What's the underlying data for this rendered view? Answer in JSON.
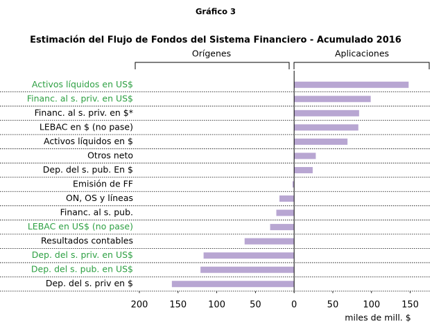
{
  "chart_data": {
    "type": "bar",
    "orientation": "horizontal",
    "supertitle": "Gráfico 3",
    "title": "Estimación del Flujo de Fondos del Sistema Financiero - Acumulado 2016",
    "group_labels": [
      "Orígenes",
      "Aplicaciones"
    ],
    "xlabel": "miles de mill. $",
    "categories": [
      "Activos líquidos en US$",
      "Financ. al s. priv. en US$",
      "Financ. al s. priv. en $*",
      "LEBAC en $ (no pase)",
      "Activos líquidos en $",
      "Otros neto",
      "Dep. del s. pub. En $",
      "Emisión de FF",
      "ON, OS y líneas",
      "Financ. al s. pub.",
      "LEBAC en US$ (no pase)",
      "Resultados contables",
      "Dep. del s. priv. en US$",
      "Dep. del s. pub. en US$",
      "Dep. del s. priv en $"
    ],
    "category_colors": [
      "#2ea043",
      "#2ea043",
      "#000000",
      "#000000",
      "#000000",
      "#000000",
      "#000000",
      "#000000",
      "#000000",
      "#000000",
      "#2ea043",
      "#000000",
      "#2ea043",
      "#2ea043",
      "#000000"
    ],
    "values": [
      148,
      99,
      84,
      83,
      69,
      28,
      24,
      -2,
      -19,
      -23,
      -31,
      -64,
      -117,
      -121,
      -158
    ],
    "color": "#b8a6d2",
    "xlim": [
      -200,
      180
    ],
    "xticks": [
      {
        "value": -200,
        "label": "200"
      },
      {
        "value": -150,
        "label": "150"
      },
      {
        "value": -100,
        "label": "100"
      },
      {
        "value": -50,
        "label": "50"
      },
      0,
      50,
      100,
      150
    ],
    "grid": false
  }
}
